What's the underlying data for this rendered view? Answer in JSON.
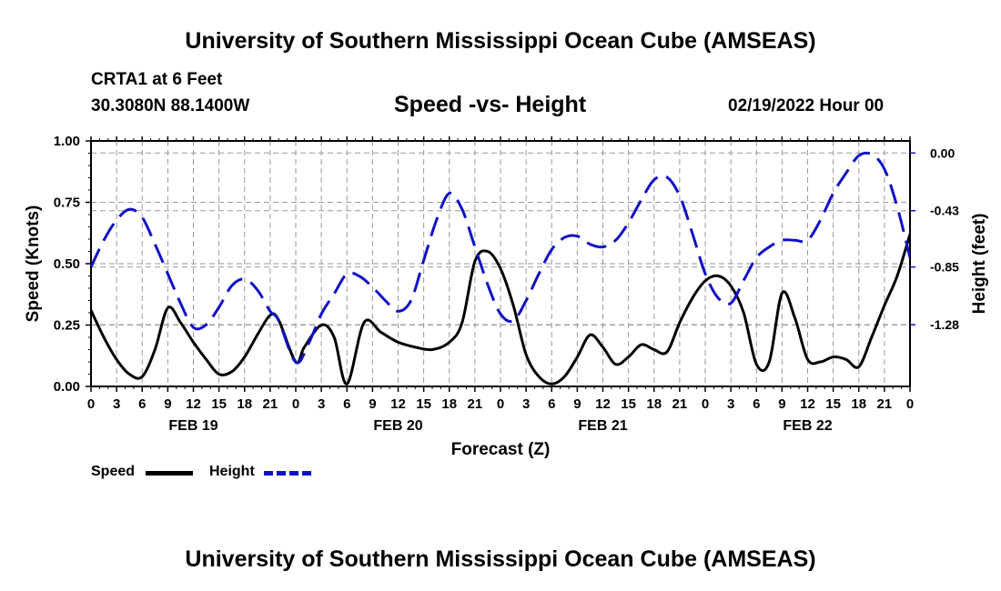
{
  "page": {
    "title_top": "University of Southern Mississippi Ocean Cube (AMSEAS)",
    "title_bottom": "University of Southern Mississippi Ocean Cube (AMSEAS)",
    "station": "CRTA1 at 6 Feet",
    "coords": "30.3080N  88.1400W",
    "chart_title": "Speed -vs- Height",
    "datetime": "02/19/2022 Hour 00"
  },
  "colors": {
    "speed": "#000000",
    "height": "#1010c8",
    "grid": "#9a9a9a"
  },
  "legend": {
    "speed_label": "Speed",
    "height_label": "Height"
  },
  "chart_data": {
    "type": "line",
    "title": "Speed -vs- Height",
    "xlabel": "Forecast (Z)",
    "ylabel": "Speed (Knots)",
    "y2label": "Height (feet)",
    "xlim": [
      0,
      96
    ],
    "ylim": [
      0,
      1.0
    ],
    "y2lim": [
      -1.74,
      0.09
    ],
    "x_tick_labels": [
      "0",
      "3",
      "6",
      "9",
      "12",
      "15",
      "18",
      "21",
      "0",
      "3",
      "6",
      "9",
      "12",
      "15",
      "18",
      "21",
      "0",
      "3",
      "6",
      "9",
      "12",
      "15",
      "18",
      "21",
      "0",
      "3",
      "6",
      "9",
      "12",
      "15",
      "18",
      "21",
      "0"
    ],
    "x_day_labels": [
      {
        "x": 12,
        "label": "FEB 19"
      },
      {
        "x": 36,
        "label": "FEB 20"
      },
      {
        "x": 60,
        "label": "FEB 21"
      },
      {
        "x": 84,
        "label": "FEB 22"
      }
    ],
    "y_ticks": [
      "0.00",
      "0.25",
      "0.50",
      "0.75",
      "1.00"
    ],
    "y2_ticks": [
      "0.00",
      "-0.43",
      "-0.85",
      "-1.28"
    ],
    "series": [
      {
        "name": "Speed",
        "axis": "left",
        "style": "solid",
        "x": [
          0,
          1.5,
          3,
          4.5,
          6,
          7.5,
          9,
          10.5,
          12,
          13.5,
          15,
          16.5,
          18,
          19.5,
          21,
          22,
          24,
          25,
          27,
          28.5,
          30,
          32,
          34,
          36,
          38,
          40,
          42,
          43.5,
          45,
          46.5,
          48,
          49.5,
          51,
          52.5,
          54,
          55.5,
          57,
          58.5,
          60,
          61.5,
          63,
          64.5,
          66,
          67.5,
          69,
          70.5,
          72,
          73.5,
          75,
          76.5,
          78,
          79.5,
          81,
          82.5,
          84,
          85.5,
          87,
          88.5,
          90,
          91.5,
          93,
          94.5,
          96
        ],
        "values": [
          0.31,
          0.2,
          0.11,
          0.05,
          0.04,
          0.15,
          0.32,
          0.26,
          0.18,
          0.11,
          0.05,
          0.06,
          0.12,
          0.21,
          0.29,
          0.27,
          0.1,
          0.16,
          0.25,
          0.2,
          0.01,
          0.26,
          0.22,
          0.18,
          0.16,
          0.15,
          0.18,
          0.26,
          0.51,
          0.55,
          0.48,
          0.33,
          0.13,
          0.04,
          0.01,
          0.04,
          0.12,
          0.21,
          0.16,
          0.09,
          0.12,
          0.17,
          0.15,
          0.14,
          0.26,
          0.36,
          0.43,
          0.45,
          0.41,
          0.3,
          0.09,
          0.1,
          0.38,
          0.28,
          0.11,
          0.1,
          0.12,
          0.11,
          0.08,
          0.2,
          0.33,
          0.45,
          0.62
        ]
      },
      {
        "name": "Height",
        "axis": "right",
        "style": "dashed",
        "x": [
          0,
          1.5,
          3,
          4.5,
          6,
          7.5,
          9,
          10.5,
          12,
          13.5,
          15,
          16.5,
          18,
          19.5,
          21,
          22,
          24,
          25.5,
          27,
          28.5,
          30,
          31.5,
          33,
          34.5,
          36,
          37.5,
          39,
          40.5,
          42,
          43.5,
          45,
          46.5,
          48,
          49.5,
          51,
          52.5,
          54,
          55.5,
          57,
          58.5,
          60,
          61.5,
          63,
          64.5,
          66,
          67.5,
          69,
          70.5,
          72,
          73.5,
          75,
          76.5,
          78,
          79.5,
          81,
          82.5,
          84,
          85.5,
          87,
          88.5,
          90,
          91.5,
          93,
          94.5,
          96
        ],
        "values": [
          -0.85,
          -0.65,
          -0.5,
          -0.42,
          -0.48,
          -0.68,
          -0.9,
          -1.12,
          -1.3,
          -1.28,
          -1.15,
          -0.99,
          -0.94,
          -1.02,
          -1.18,
          -1.25,
          -1.56,
          -1.42,
          -1.2,
          -1.05,
          -0.9,
          -0.92,
          -1.0,
          -1.1,
          -1.18,
          -1.1,
          -0.8,
          -0.5,
          -0.3,
          -0.42,
          -0.7,
          -0.98,
          -1.2,
          -1.25,
          -1.1,
          -0.9,
          -0.72,
          -0.63,
          -0.62,
          -0.68,
          -0.7,
          -0.65,
          -0.52,
          -0.35,
          -0.2,
          -0.18,
          -0.32,
          -0.6,
          -0.9,
          -1.08,
          -1.12,
          -0.95,
          -0.78,
          -0.7,
          -0.65,
          -0.65,
          -0.65,
          -0.5,
          -0.3,
          -0.15,
          -0.02,
          -0.01,
          -0.12,
          -0.4,
          -0.78
        ]
      }
    ]
  }
}
